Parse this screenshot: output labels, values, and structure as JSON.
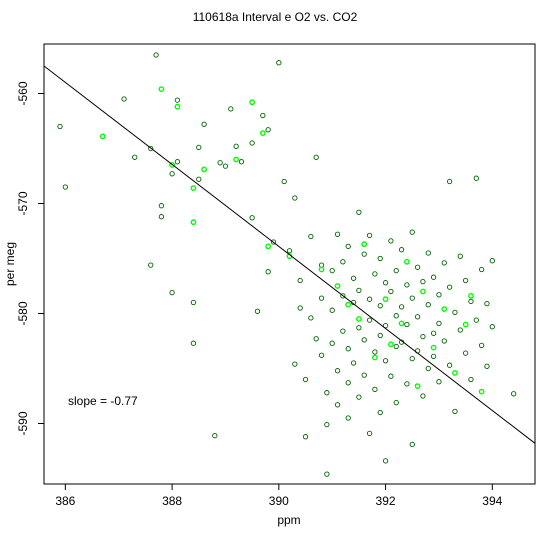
{
  "chart_data": {
    "type": "scatter",
    "title": "110618a   Interval e O2 vs. CO2",
    "xlabel": "ppm",
    "ylabel": "per meg",
    "xlim": [
      385.6,
      394.8
    ],
    "ylim": [
      -595.5,
      -555.5
    ],
    "x_ticks": [
      386,
      388,
      390,
      392,
      394
    ],
    "y_ticks": [
      -560,
      -570,
      -580,
      -590
    ],
    "grid": false,
    "annotation": "slope =  -0.77",
    "fit_line": {
      "x": [
        385.6,
        394.8
      ],
      "y": [
        -557.5,
        -591.8
      ]
    },
    "series": [
      {
        "color": "#006400",
        "marker": "open-circle",
        "points": [
          [
            385.9,
            -563.0
          ],
          [
            386.0,
            -568.5
          ],
          [
            387.1,
            -560.5
          ],
          [
            387.3,
            -565.8
          ],
          [
            387.6,
            -565.0
          ],
          [
            387.7,
            -556.5
          ],
          [
            387.6,
            -575.6
          ],
          [
            387.8,
            -571.2
          ],
          [
            387.8,
            -570.2
          ],
          [
            388.0,
            -567.3
          ],
          [
            388.0,
            -578.1
          ],
          [
            388.1,
            -566.2
          ],
          [
            388.1,
            -560.6
          ],
          [
            388.4,
            -579.0
          ],
          [
            388.4,
            -582.7
          ],
          [
            388.5,
            -564.9
          ],
          [
            388.5,
            -567.8
          ],
          [
            388.6,
            -562.8
          ],
          [
            388.8,
            -591.1
          ],
          [
            388.9,
            -566.3
          ],
          [
            389.0,
            -566.6
          ],
          [
            389.1,
            -561.4
          ],
          [
            389.2,
            -564.8
          ],
          [
            389.3,
            -566.2
          ],
          [
            389.5,
            -571.3
          ],
          [
            389.5,
            -564.5
          ],
          [
            389.6,
            -579.8
          ],
          [
            389.7,
            -562.0
          ],
          [
            389.8,
            -563.3
          ],
          [
            389.8,
            -576.2
          ],
          [
            389.9,
            -573.5
          ],
          [
            390.0,
            -557.2
          ],
          [
            390.1,
            -568.0
          ],
          [
            390.2,
            -574.3
          ],
          [
            390.3,
            -569.5
          ],
          [
            390.3,
            -584.6
          ],
          [
            390.4,
            -577.0
          ],
          [
            390.4,
            -579.5
          ],
          [
            390.5,
            -586.0
          ],
          [
            390.5,
            -591.2
          ],
          [
            390.6,
            -573.0
          ],
          [
            390.6,
            -580.4
          ],
          [
            390.7,
            -582.3
          ],
          [
            390.7,
            -565.8
          ],
          [
            390.8,
            -575.6
          ],
          [
            390.8,
            -578.6
          ],
          [
            390.8,
            -583.8
          ],
          [
            390.9,
            -587.2
          ],
          [
            390.9,
            -590.1
          ],
          [
            390.9,
            -594.6
          ],
          [
            391.0,
            -576.1
          ],
          [
            391.0,
            -579.7
          ],
          [
            391.0,
            -582.7
          ],
          [
            391.1,
            -572.8
          ],
          [
            391.1,
            -585.2
          ],
          [
            391.1,
            -588.3
          ],
          [
            391.2,
            -575.3
          ],
          [
            391.2,
            -578.4
          ],
          [
            391.2,
            -581.6
          ],
          [
            391.3,
            -573.9
          ],
          [
            391.3,
            -583.2
          ],
          [
            391.3,
            -586.3
          ],
          [
            391.3,
            -589.5
          ],
          [
            391.4,
            -576.8
          ],
          [
            391.4,
            -579.0
          ],
          [
            391.4,
            -584.5
          ],
          [
            391.5,
            -570.8
          ],
          [
            391.5,
            -577.9
          ],
          [
            391.5,
            -581.3
          ],
          [
            391.5,
            -587.6
          ],
          [
            391.6,
            -574.6
          ],
          [
            391.6,
            -582.4
          ],
          [
            391.6,
            -585.6
          ],
          [
            391.7,
            -572.9
          ],
          [
            391.7,
            -578.7
          ],
          [
            391.7,
            -580.6
          ],
          [
            391.7,
            -590.9
          ],
          [
            391.8,
            -576.4
          ],
          [
            391.8,
            -583.5
          ],
          [
            391.8,
            -586.9
          ],
          [
            391.9,
            -575.0
          ],
          [
            391.9,
            -579.3
          ],
          [
            391.9,
            -582.0
          ],
          [
            391.9,
            -589.0
          ],
          [
            392.0,
            -577.2
          ],
          [
            392.0,
            -581.1
          ],
          [
            392.0,
            -584.3
          ],
          [
            392.0,
            -593.4
          ],
          [
            392.1,
            -573.4
          ],
          [
            392.1,
            -578.0
          ],
          [
            392.1,
            -585.7
          ],
          [
            392.2,
            -576.1
          ],
          [
            392.2,
            -580.2
          ],
          [
            392.2,
            -583.0
          ],
          [
            392.2,
            -588.1
          ],
          [
            392.3,
            -574.2
          ],
          [
            392.3,
            -579.4
          ],
          [
            392.3,
            -582.6
          ],
          [
            392.4,
            -577.4
          ],
          [
            392.4,
            -581.0
          ],
          [
            392.4,
            -586.4
          ],
          [
            392.5,
            -572.6
          ],
          [
            392.5,
            -578.6
          ],
          [
            392.5,
            -584.1
          ],
          [
            392.5,
            -591.9
          ],
          [
            392.6,
            -575.8
          ],
          [
            392.6,
            -580.3
          ],
          [
            392.6,
            -583.4
          ],
          [
            392.7,
            -577.1
          ],
          [
            392.7,
            -582.1
          ],
          [
            392.7,
            -587.5
          ],
          [
            392.8,
            -574.5
          ],
          [
            392.8,
            -579.2
          ],
          [
            392.8,
            -585.0
          ],
          [
            392.9,
            -576.7
          ],
          [
            392.9,
            -581.8
          ],
          [
            392.9,
            -583.9
          ],
          [
            393.0,
            -578.3
          ],
          [
            393.0,
            -580.9
          ],
          [
            393.0,
            -586.2
          ],
          [
            393.1,
            -575.4
          ],
          [
            393.1,
            -582.5
          ],
          [
            393.2,
            -568.0
          ],
          [
            393.2,
            -577.6
          ],
          [
            393.2,
            -584.7
          ],
          [
            393.3,
            -579.9
          ],
          [
            393.3,
            -588.9
          ],
          [
            393.4,
            -574.8
          ],
          [
            393.4,
            -581.5
          ],
          [
            393.5,
            -577.0
          ],
          [
            393.5,
            -583.6
          ],
          [
            393.6,
            -578.9
          ],
          [
            393.6,
            -586.0
          ],
          [
            393.7,
            -567.7
          ],
          [
            393.7,
            -580.6
          ],
          [
            393.8,
            -576.0
          ],
          [
            393.8,
            -582.9
          ],
          [
            393.9,
            -579.1
          ],
          [
            393.9,
            -584.8
          ],
          [
            394.0,
            -575.2
          ],
          [
            394.0,
            -581.2
          ],
          [
            394.4,
            -587.3
          ]
        ]
      },
      {
        "color": "#00ff00",
        "marker": "open-circle",
        "points": [
          [
            386.7,
            -563.9
          ],
          [
            387.8,
            -559.6
          ],
          [
            388.0,
            -566.5
          ],
          [
            388.1,
            -561.2
          ],
          [
            388.4,
            -568.6
          ],
          [
            388.4,
            -571.7
          ],
          [
            388.6,
            -566.9
          ],
          [
            389.2,
            -566.0
          ],
          [
            389.5,
            -560.8
          ],
          [
            389.7,
            -563.6
          ],
          [
            389.8,
            -573.9
          ],
          [
            390.2,
            -574.8
          ],
          [
            390.8,
            -576.0
          ],
          [
            391.1,
            -577.5
          ],
          [
            391.3,
            -579.2
          ],
          [
            391.5,
            -580.5
          ],
          [
            391.6,
            -573.7
          ],
          [
            391.8,
            -584.0
          ],
          [
            392.0,
            -578.7
          ],
          [
            392.1,
            -582.8
          ],
          [
            392.3,
            -580.9
          ],
          [
            392.4,
            -575.3
          ],
          [
            392.6,
            -586.6
          ],
          [
            392.7,
            -578.0
          ],
          [
            392.9,
            -583.1
          ],
          [
            393.1,
            -579.6
          ],
          [
            393.3,
            -585.4
          ],
          [
            393.5,
            -581.0
          ],
          [
            393.6,
            -578.4
          ],
          [
            393.8,
            -587.1
          ]
        ]
      }
    ]
  }
}
